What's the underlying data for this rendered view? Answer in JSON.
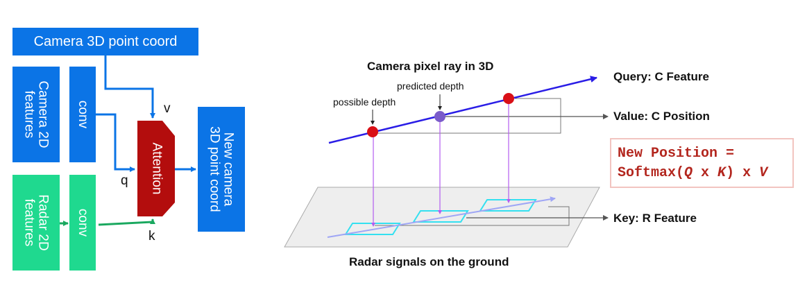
{
  "left_diagram": {
    "camera_3d_point_coord": "Camera 3D point coord",
    "camera_2d_features": [
      "Camera 2D",
      "features"
    ],
    "radar_2d_features": [
      "Radar 2D",
      "features"
    ],
    "conv_top": "conv",
    "conv_bottom": "conv",
    "attention": "Attention",
    "new_camera_coord": [
      "New camera",
      "3D point coord"
    ],
    "label_v": "v",
    "label_q": "q",
    "label_k": "k"
  },
  "right_diagram": {
    "title": "Camera pixel ray in 3D",
    "predicted_depth": "predicted depth",
    "possible_depth": "possible depth",
    "query": "Query: C Feature",
    "value": "Value: C Position",
    "key": "Key: R Feature",
    "ground_caption": "Radar signals on the ground",
    "formula": {
      "line1": "New Position =",
      "line2_prefix": "Softmax(",
      "q": "Q",
      "x1": " x ",
      "k": "K",
      "close": ")",
      "x2": " x ",
      "v": "V"
    }
  },
  "colors": {
    "blue": "#0b74e6",
    "green": "#1fd98f",
    "attention_red": "#b30d0d",
    "ray_blue": "#2a1de6",
    "point_red": "#d90f16",
    "point_purple": "#7a5cc9",
    "projection_violet": "#b35cf0",
    "radar_cyan": "#34e0f0",
    "formula_red": "#b3261e"
  }
}
